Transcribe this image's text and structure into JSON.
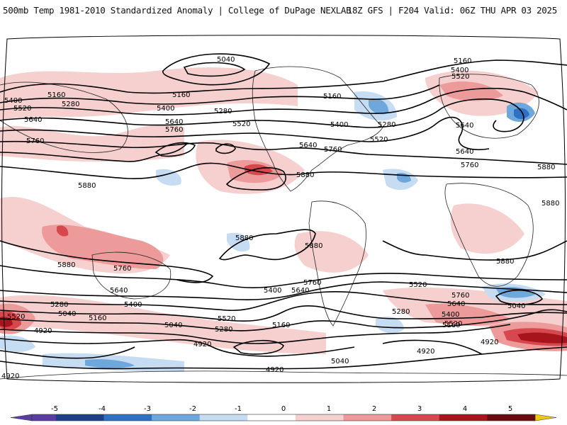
{
  "header": {
    "title_left": "500mb Temp 1981-2010 Standardized Anomaly | College of DuPage NEXLAB",
    "title_right": "18Z GFS | F204 Valid: 06Z THU APR 03 2025"
  },
  "colors": {
    "neg5": "#5a3fa0",
    "neg4": "#1e3f86",
    "neg3": "#2f6fc4",
    "neg2": "#6ea7dc",
    "neg1": "#c5dcf2",
    "zero": "#ffffff",
    "pos1": "#f6cfcf",
    "pos2": "#ec9a9a",
    "pos3": "#d6484e",
    "pos4": "#a8141c",
    "pos5": "#6b0a0e",
    "extreme_high": "#f0c419"
  },
  "legend": {
    "labels": [
      "-5",
      "-4",
      "-3",
      "-2",
      "-1",
      "0",
      "1",
      "2",
      "3",
      "4",
      "5"
    ]
  },
  "contour_labels": {
    "l4920": "4920",
    "l5040": "5040",
    "l5160": "5160",
    "l5280": "5280",
    "l5400": "5400",
    "l5520": "5520",
    "l5640": "5640",
    "l5760": "5760",
    "l5880": "5880"
  }
}
